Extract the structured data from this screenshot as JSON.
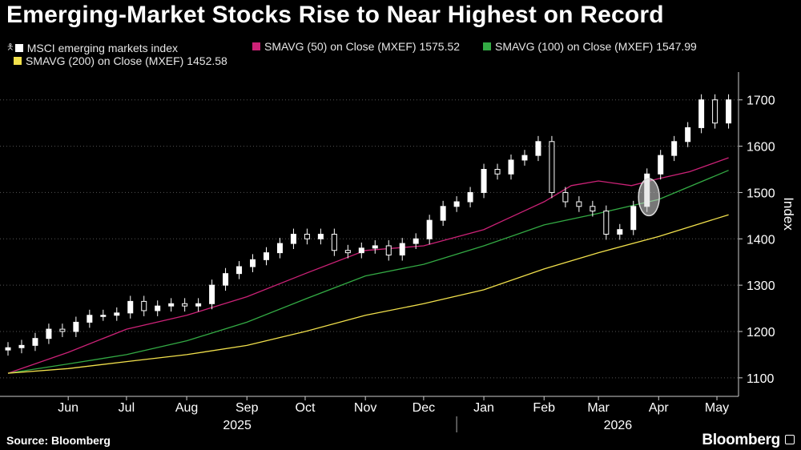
{
  "page": {
    "title": "Emerging-Market Stocks Rise to Near Highest on Record",
    "source": "Source: Bloomberg",
    "brand": "Bloomberg"
  },
  "chart_data": {
    "type": "line",
    "title": "Emerging-Market Stocks Rise to Near Highest on Record",
    "ylabel": "Index",
    "ylim": [
      1060,
      1760
    ],
    "yticks": [
      1100,
      1200,
      1300,
      1400,
      1500,
      1600,
      1700
    ],
    "xlim": [
      "2025-05-15",
      "2026-05-22"
    ],
    "month_ticks": [
      {
        "label": "Jun",
        "date": "2025-06-15"
      },
      {
        "label": "Jul",
        "date": "2025-07-15"
      },
      {
        "label": "Aug",
        "date": "2025-08-15"
      },
      {
        "label": "Sep",
        "date": "2025-09-15"
      },
      {
        "label": "Oct",
        "date": "2025-10-15"
      },
      {
        "label": "Nov",
        "date": "2025-11-15"
      },
      {
        "label": "Dec",
        "date": "2025-12-15"
      },
      {
        "label": "Jan",
        "date": "2026-01-15"
      },
      {
        "label": "Feb",
        "date": "2026-02-15"
      },
      {
        "label": "Mar",
        "date": "2026-03-15"
      },
      {
        "label": "Apr",
        "date": "2026-04-15"
      },
      {
        "label": "May",
        "date": "2026-05-15"
      }
    ],
    "year_labels": [
      {
        "label": "2025",
        "date": "2025-09-10"
      },
      {
        "label": "2026",
        "date": "2026-03-25"
      }
    ],
    "year_divider": "2026-01-01",
    "grid": true,
    "legend_position": "top-left",
    "highlight": {
      "date": "2026-04-10",
      "low": 1450,
      "high": 1530,
      "color": "#d9d9d9"
    },
    "series": [
      {
        "name": "MSCI emerging markets index",
        "legend": "MSCI emerging markets index",
        "color": "#ffffff",
        "style": "candlestick",
        "x": [
          "2025-05-15",
          "2025-05-22",
          "2025-05-29",
          "2025-06-05",
          "2025-06-12",
          "2025-06-19",
          "2025-06-26",
          "2025-07-03",
          "2025-07-10",
          "2025-07-17",
          "2025-07-24",
          "2025-07-31",
          "2025-08-07",
          "2025-08-14",
          "2025-08-21",
          "2025-08-28",
          "2025-09-04",
          "2025-09-11",
          "2025-09-18",
          "2025-09-25",
          "2025-10-02",
          "2025-10-09",
          "2025-10-16",
          "2025-10-23",
          "2025-10-30",
          "2025-11-06",
          "2025-11-13",
          "2025-11-20",
          "2025-11-27",
          "2025-12-04",
          "2025-12-11",
          "2025-12-18",
          "2025-12-25",
          "2026-01-01",
          "2026-01-08",
          "2026-01-15",
          "2026-01-22",
          "2026-01-29",
          "2026-02-05",
          "2026-02-12",
          "2026-02-19",
          "2026-02-26",
          "2026-03-05",
          "2026-03-12",
          "2026-03-19",
          "2026-03-26",
          "2026-04-02",
          "2026-04-09",
          "2026-04-16",
          "2026-04-23",
          "2026-04-30",
          "2026-05-07",
          "2026-05-14",
          "2026-05-21"
        ],
        "values": [
          1165,
          1170,
          1185,
          1205,
          1200,
          1220,
          1235,
          1235,
          1240,
          1265,
          1245,
          1255,
          1260,
          1255,
          1260,
          1300,
          1325,
          1340,
          1355,
          1370,
          1390,
          1410,
          1400,
          1410,
          1375,
          1370,
          1380,
          1385,
          1365,
          1390,
          1400,
          1440,
          1470,
          1480,
          1500,
          1550,
          1540,
          1570,
          1580,
          1610,
          1500,
          1480,
          1470,
          1460,
          1410,
          1420,
          1470,
          1540,
          1580,
          1610,
          1640,
          1700,
          1650,
          1700
        ]
      },
      {
        "name": "SMAVG (50)  on Close (MXEF)",
        "legend": "SMAVG (50)  on Close (MXEF) 1575.52",
        "color": "#cc2277",
        "x": [
          "2025-05-15",
          "2025-06-15",
          "2025-07-15",
          "2025-08-15",
          "2025-09-15",
          "2025-10-15",
          "2025-11-15",
          "2025-12-15",
          "2026-01-15",
          "2026-02-15",
          "2026-03-01",
          "2026-03-15",
          "2026-04-01",
          "2026-04-15",
          "2026-05-01",
          "2026-05-21"
        ],
        "values": [
          1110,
          1155,
          1205,
          1235,
          1275,
          1325,
          1375,
          1385,
          1420,
          1480,
          1515,
          1525,
          1515,
          1530,
          1545,
          1575
        ]
      },
      {
        "name": "SMAVG (100)  on Close (MXEF)",
        "legend": "SMAVG (100)  on Close (MXEF) 1547.99",
        "color": "#33aa44",
        "x": [
          "2025-05-15",
          "2025-06-15",
          "2025-07-15",
          "2025-08-15",
          "2025-09-15",
          "2025-10-15",
          "2025-11-15",
          "2025-12-15",
          "2026-01-15",
          "2026-02-15",
          "2026-03-15",
          "2026-04-15",
          "2026-05-21"
        ],
        "values": [
          1110,
          1130,
          1150,
          1180,
          1220,
          1270,
          1320,
          1345,
          1385,
          1430,
          1455,
          1485,
          1548
        ]
      },
      {
        "name": "SMAVG (200)  on Close (MXEF)",
        "legend": "SMAVG (200)  on Close (MXEF) 1452.58",
        "color": "#f2e14c",
        "x": [
          "2025-05-15",
          "2025-06-15",
          "2025-07-15",
          "2025-08-15",
          "2025-09-15",
          "2025-10-15",
          "2025-11-15",
          "2025-12-15",
          "2026-01-15",
          "2026-02-15",
          "2026-03-15",
          "2026-04-15",
          "2026-05-21"
        ],
        "values": [
          1110,
          1120,
          1135,
          1150,
          1170,
          1200,
          1235,
          1260,
          1290,
          1335,
          1370,
          1405,
          1452
        ]
      }
    ]
  }
}
